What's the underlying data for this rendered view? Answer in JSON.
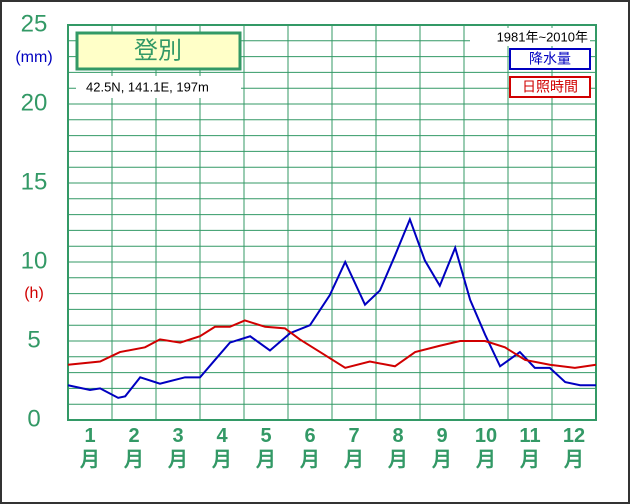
{
  "chart_data": {
    "type": "line",
    "title": "登別",
    "subtitle": "42.5N,  141.1E,  197m",
    "period": "1981年~2010年",
    "y_unit_left": "(mm)",
    "y_unit_right": "(h)",
    "xlim": [
      0,
      12
    ],
    "xticks": [
      {
        "value": 0.5,
        "label": "1\n月"
      },
      {
        "value": 1.5,
        "label": "2\n月"
      },
      {
        "value": 2.5,
        "label": "3\n月"
      },
      {
        "value": 3.5,
        "label": "4\n月"
      },
      {
        "value": 4.5,
        "label": "5\n月"
      },
      {
        "value": 5.5,
        "label": "6\n月"
      },
      {
        "value": 6.5,
        "label": "7\n月"
      },
      {
        "value": 7.5,
        "label": "8\n月"
      },
      {
        "value": 8.5,
        "label": "9\n月"
      },
      {
        "value": 9.5,
        "label": "10\n月"
      },
      {
        "value": 10.5,
        "label": "11\n月"
      },
      {
        "value": 11.5,
        "label": "12\n月"
      }
    ],
    "xgrid": [
      0,
      1,
      2,
      3,
      4,
      5,
      6,
      7,
      8,
      9,
      10,
      11,
      12
    ],
    "ylim": [
      0,
      25
    ],
    "yticks": [
      0,
      5,
      10,
      15,
      20,
      25
    ],
    "ygrid": [
      0,
      1,
      2,
      3,
      4,
      5,
      6,
      7,
      8,
      9,
      10,
      11,
      12,
      13,
      14,
      15,
      16,
      17,
      18,
      19,
      20,
      21,
      22,
      23,
      24,
      25
    ],
    "grid": true,
    "series": [
      {
        "name": "降水量",
        "color": "#0000c0",
        "x": [
          0,
          0.5,
          0.73,
          1.14,
          1.3,
          1.64,
          2.09,
          2.66,
          3.0,
          3.34,
          3.68,
          4.14,
          4.59,
          5.05,
          5.5,
          5.95,
          6.3,
          6.75,
          7.09,
          7.43,
          7.77,
          8.11,
          8.45,
          8.8,
          9.14,
          9.48,
          9.82,
          10.27,
          10.61,
          10.95,
          11.3,
          11.64,
          12
        ],
        "values": [
          2.2,
          1.9,
          2.0,
          1.4,
          1.5,
          2.7,
          2.3,
          2.7,
          2.7,
          3.8,
          4.9,
          5.3,
          4.4,
          5.5,
          6.0,
          7.9,
          10.0,
          7.3,
          8.2,
          10.4,
          12.7,
          10.1,
          8.5,
          10.9,
          7.6,
          5.4,
          3.4,
          4.3,
          3.3,
          3.3,
          2.4,
          2.2,
          2.2
        ]
      },
      {
        "name": "日照時間",
        "color": "#d00000",
        "x": [
          0,
          0.73,
          1.18,
          1.75,
          2.09,
          2.55,
          3.0,
          3.34,
          3.68,
          4.02,
          4.48,
          4.93,
          5.27,
          5.73,
          6.3,
          6.86,
          7.43,
          7.89,
          8.45,
          8.91,
          9.48,
          9.93,
          10.39,
          10.95,
          11.52,
          12
        ],
        "values": [
          3.5,
          3.7,
          4.3,
          4.6,
          5.1,
          4.9,
          5.3,
          5.9,
          5.9,
          6.3,
          5.9,
          5.8,
          5.1,
          4.3,
          3.3,
          3.7,
          3.4,
          4.3,
          4.7,
          5.0,
          5.0,
          4.6,
          3.8,
          3.5,
          3.3,
          3.5
        ]
      }
    ]
  }
}
